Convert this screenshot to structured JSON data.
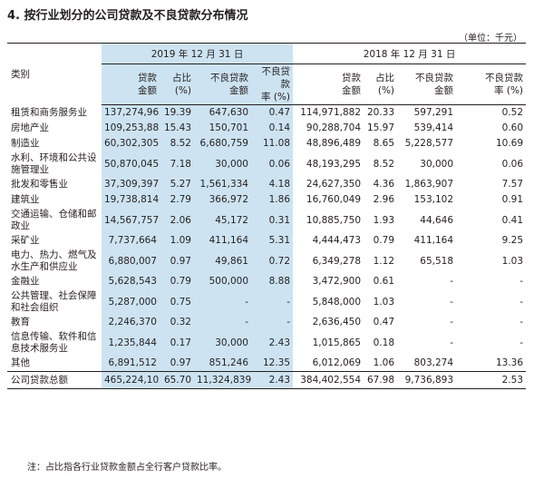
{
  "title": "4. 按行业划分的公司贷款及不良贷款分布情况",
  "unit": "（单位：千元）",
  "header": {
    "category": "类别",
    "period_2019": "2019 年 12 月 31 日",
    "period_2018": "2018 年 12 月 31 日",
    "col_loan_line1": "贷款",
    "col_loan_line2": "金额",
    "col_share_line1": "占比",
    "col_share_line2": "(%)",
    "col_npl_line1": "不良贷款",
    "col_npl_line2": "金额",
    "col_nplr_line1": "不良贷款",
    "col_nplr_line2": "率 (%)"
  },
  "rows": [
    {
      "cat": "租赁和商务服务业",
      "v": [
        "137,274,963",
        "19.39",
        "647,630",
        "0.47",
        "114,971,882",
        "20.33",
        "597,291",
        "0.52"
      ]
    },
    {
      "cat": "房地产业",
      "v": [
        "109,253,881",
        "15.43",
        "150,701",
        "0.14",
        "90,288,704",
        "15.97",
        "539,414",
        "0.60"
      ]
    },
    {
      "cat": "制造业",
      "v": [
        "60,302,305",
        "8.52",
        "6,680,759",
        "11.08",
        "48,896,489",
        "8.65",
        "5,228,577",
        "10.69"
      ]
    },
    {
      "cat": "水利、环境和公共设施管理业",
      "v": [
        "50,870,045",
        "7.18",
        "30,000",
        "0.06",
        "48,193,295",
        "8.52",
        "30,000",
        "0.06"
      ]
    },
    {
      "cat": "批发和零售业",
      "v": [
        "37,309,397",
        "5.27",
        "1,561,334",
        "4.18",
        "24,627,350",
        "4.36",
        "1,863,907",
        "7.57"
      ]
    },
    {
      "cat": "建筑业",
      "v": [
        "19,738,814",
        "2.79",
        "366,972",
        "1.86",
        "16,760,049",
        "2.96",
        "153,102",
        "0.91"
      ]
    },
    {
      "cat": "交通运输、仓储和邮政业",
      "v": [
        "14,567,757",
        "2.06",
        "45,172",
        "0.31",
        "10,885,750",
        "1.93",
        "44,646",
        "0.41"
      ]
    },
    {
      "cat": "采矿业",
      "v": [
        "7,737,664",
        "1.09",
        "411,164",
        "5.31",
        "4,444,473",
        "0.79",
        "411,164",
        "9.25"
      ]
    },
    {
      "cat": "电力、热力、燃气及水生产和供应业",
      "v": [
        "6,880,007",
        "0.97",
        "49,861",
        "0.72",
        "6,349,278",
        "1.12",
        "65,518",
        "1.03"
      ]
    },
    {
      "cat": "金融业",
      "v": [
        "5,628,543",
        "0.79",
        "500,000",
        "8.88",
        "3,472,900",
        "0.61",
        "-",
        "-"
      ]
    },
    {
      "cat": "公共管理、社会保障和社会组织",
      "v": [
        "5,287,000",
        "0.75",
        "-",
        "-",
        "5,848,000",
        "1.03",
        "-",
        "-"
      ]
    },
    {
      "cat": "教育",
      "v": [
        "2,246,370",
        "0.32",
        "-",
        "-",
        "2,636,450",
        "0.47",
        "-",
        "-"
      ]
    },
    {
      "cat": "信息传输、软件和信息技术服务业",
      "v": [
        "1,235,844",
        "0.17",
        "30,000",
        "2.43",
        "1,015,865",
        "0.18",
        "-",
        "-"
      ]
    },
    {
      "cat": "其他",
      "v": [
        "6,891,512",
        "0.97",
        "851,246",
        "12.35",
        "6,012,069",
        "1.06",
        "803,274",
        "13.36"
      ]
    }
  ],
  "total": {
    "cat": "公司贷款总额",
    "v": [
      "465,224,102",
      "65.70",
      "11,324,839",
      "2.43",
      "384,402,554",
      "67.98",
      "9,736,893",
      "2.53"
    ]
  },
  "note": "注：占比指各行业贷款金额占全行客户贷款比率。",
  "colors": {
    "highlight": "#cde3f1",
    "text": "#231f20"
  }
}
